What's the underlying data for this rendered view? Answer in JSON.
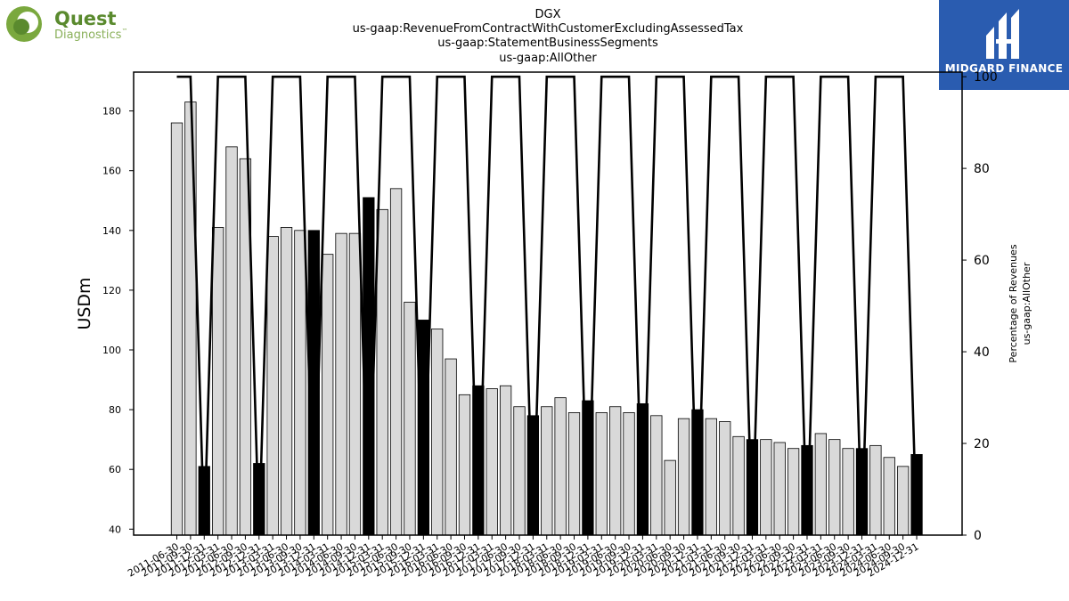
{
  "logos": {
    "company": {
      "name": "Quest",
      "sub": "Diagnostics",
      "trademark": "™",
      "colors": {
        "green": "#5a8a2e",
        "light_green": "#8ab05a"
      }
    },
    "publisher": {
      "name": "MIDGARD FINANCE",
      "colors": {
        "background": "#2a5cb0",
        "text": "#ffffff"
      }
    }
  },
  "chart_data": {
    "type": "bar",
    "title_lines": [
      "DGX",
      "us-gaap:RevenueFromContractWithCustomerExcludingAssessedTax",
      "us-gaap:StatementBusinessSegments",
      "us-gaap:AllOther"
    ],
    "ylabel": "USDm",
    "y2label_lines": [
      "Percentage of Revenues",
      "us-gaap:AllOther"
    ],
    "ylim": [
      38,
      193
    ],
    "y2lim": [
      0,
      101
    ],
    "yticks": [
      40,
      60,
      80,
      100,
      120,
      140,
      160,
      180
    ],
    "y2ticks": [
      0,
      20,
      40,
      60,
      80,
      100
    ],
    "grid": false,
    "colors": {
      "quarter_bar": "#d9d9d9",
      "annual_bar": "#000000",
      "bar_edge": "#000000",
      "line": "#000000"
    },
    "categories": [
      "2011-06-30",
      "2011-09-30",
      "2011-12-31",
      "2012-03-31",
      "2012-06-30",
      "2012-09-30",
      "2012-12-31",
      "2013-03-31",
      "2013-06-30",
      "2013-09-30",
      "2013-12-31",
      "2014-03-31",
      "2014-06-30",
      "2014-09-30",
      "2014-12-31",
      "2015-03-31",
      "2015-06-30",
      "2015-09-30",
      "2015-12-31",
      "2016-03-31",
      "2016-06-30",
      "2016-09-30",
      "2016-12-31",
      "2017-03-31",
      "2017-06-30",
      "2017-09-30",
      "2017-12-31",
      "2018-03-31",
      "2018-06-30",
      "2018-09-30",
      "2018-12-31",
      "2019-03-31",
      "2019-06-30",
      "2019-09-30",
      "2019-12-31",
      "2020-03-31",
      "2020-06-30",
      "2020-09-30",
      "2020-12-31",
      "2021-03-31",
      "2021-06-30",
      "2021-09-30",
      "2021-12-31",
      "2022-03-31",
      "2022-06-30",
      "2022-09-30",
      "2022-12-31",
      "2023-03-31",
      "2023-06-30",
      "2023-09-30",
      "2023-12-31",
      "2024-03-31",
      "2024-06-30",
      "2024-09-30",
      "2024-12-31"
    ],
    "xtick_labels": [
      "2011-06-30",
      "2011-09-30",
      "2011-12-31",
      "2012-03-31",
      "2012-06-30",
      "2012-09-30",
      "2012-12-31",
      "2013-03-31",
      "2013-06-30",
      "2013-09-30",
      "2013-12-31",
      "2014-03-31",
      "2014-06-30",
      "2014-09-30",
      "2014-12-31",
      "2015-03-31",
      "2015-06-30",
      "2015-09-30",
      "2015-12-31",
      "2016-03-31",
      "2016-06-30",
      "2016-09-30",
      "2016-12-31",
      "2017-03-31",
      "2017-06-30",
      "2017-09-30",
      "2017-12-31",
      "2018-03-31",
      "2018-06-30",
      "2018-09-30",
      "2018-12-31",
      "2019-03-31",
      "2019-06-30",
      "2019-09-30",
      "2019-12-31",
      "2020-03-31",
      "2020-06-30",
      "2020-09-30",
      "2020-12-31",
      "2021-03-31",
      "2021-06-30",
      "2021-09-30",
      "2021-12-31",
      "2022-03-31",
      "2022-06-30",
      "2022-09-30",
      "2022-12-31",
      "2023-03-31",
      "2023-06-30",
      "2023-09-30",
      "2023-12-31",
      "2024-03-31",
      "2024-06-30",
      "2024-09-30",
      "2024-12-31"
    ],
    "series": [
      {
        "kind": "bar",
        "axis": "left",
        "values": [
          176,
          183,
          61,
          141,
          168,
          164,
          62,
          138,
          141,
          140,
          140,
          132,
          139,
          139,
          151,
          147,
          154,
          116,
          110,
          107,
          97,
          85,
          88,
          87,
          88,
          81,
          78,
          81,
          84,
          79,
          83,
          79,
          81,
          79,
          82,
          78,
          63,
          77,
          80,
          77,
          76,
          71,
          70,
          70,
          69,
          67,
          68,
          72,
          70,
          67,
          67,
          68,
          64,
          61,
          65
        ],
        "is_annual": [
          false,
          false,
          true,
          false,
          false,
          false,
          true,
          false,
          false,
          false,
          true,
          false,
          false,
          false,
          true,
          false,
          false,
          false,
          true,
          false,
          false,
          false,
          true,
          false,
          false,
          false,
          true,
          false,
          false,
          false,
          true,
          false,
          false,
          false,
          true,
          false,
          false,
          false,
          true,
          false,
          false,
          false,
          true,
          false,
          false,
          false,
          true,
          false,
          false,
          false,
          true,
          false,
          false,
          false,
          true
        ]
      },
      {
        "kind": "line",
        "axis": "right",
        "values": [
          100,
          100,
          0,
          100,
          100,
          100,
          0,
          100,
          100,
          100,
          0,
          100,
          100,
          100,
          0,
          100,
          100,
          100,
          0,
          100,
          100,
          100,
          0,
          100,
          100,
          100,
          0,
          100,
          100,
          100,
          0,
          100,
          100,
          100,
          0,
          100,
          100,
          100,
          0,
          100,
          100,
          100,
          0,
          100,
          100,
          100,
          0,
          100,
          100,
          100,
          0,
          100,
          100,
          100,
          0
        ]
      }
    ]
  }
}
